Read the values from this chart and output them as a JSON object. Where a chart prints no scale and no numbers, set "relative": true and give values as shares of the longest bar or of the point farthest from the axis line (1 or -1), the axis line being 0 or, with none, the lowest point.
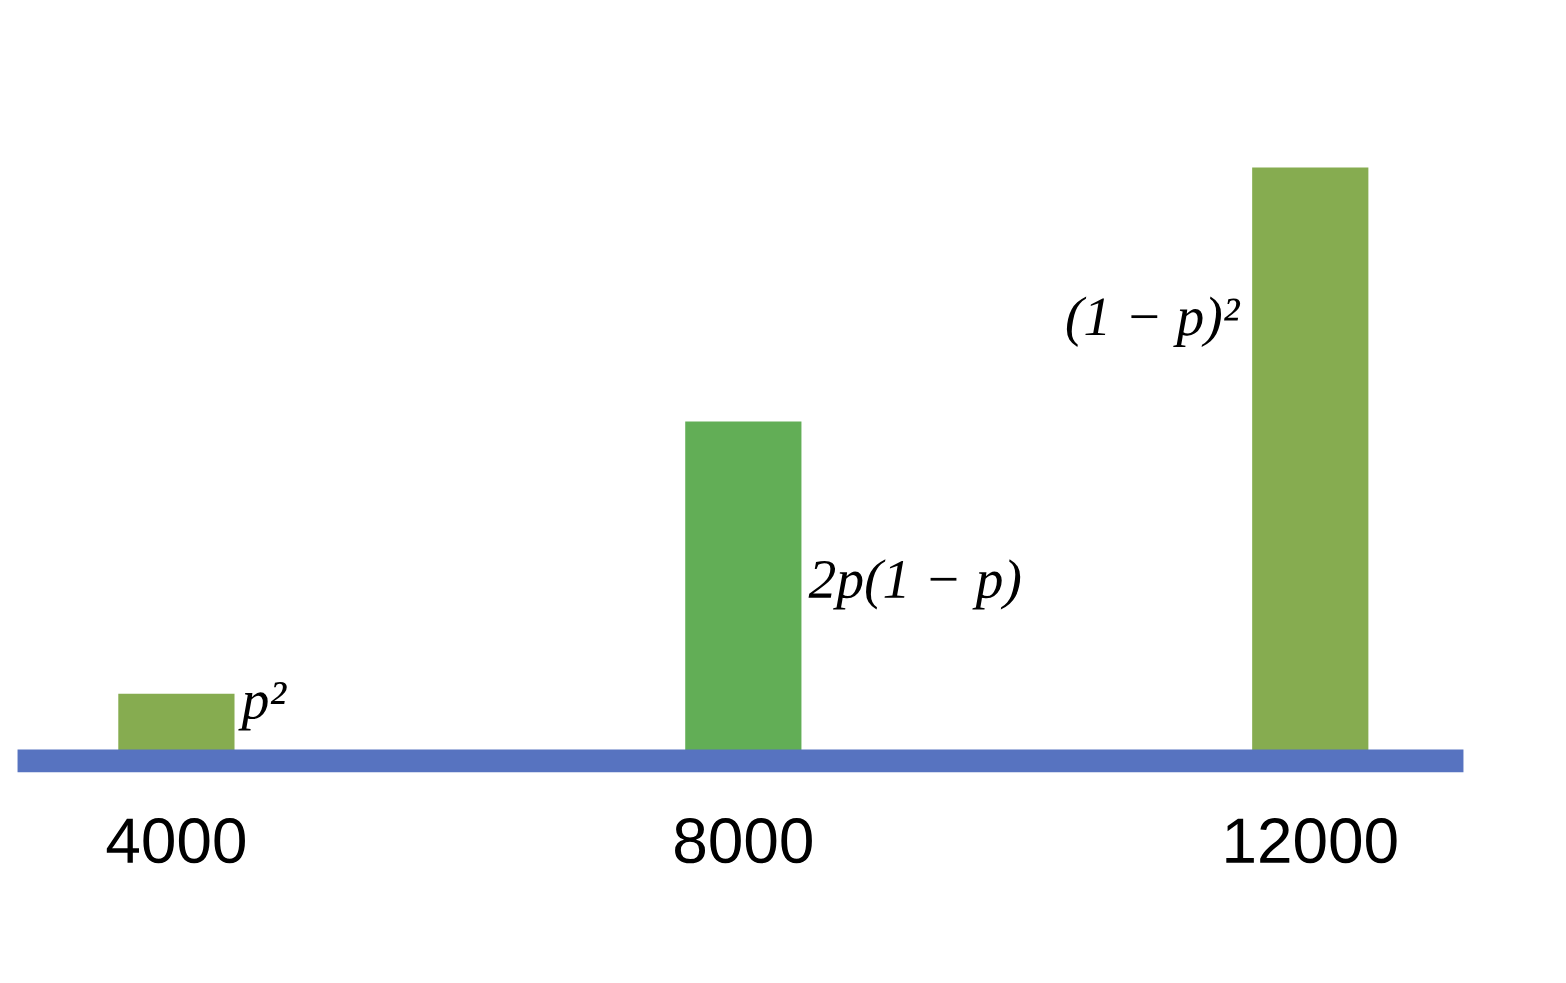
{
  "chart_data": {
    "type": "bar",
    "relative": true,
    "categories": [
      "4000",
      "8000",
      "12000"
    ],
    "values": [
      0.113,
      0.572,
      1
    ],
    "colors": [
      "#86ac50",
      "#62ae56",
      "#86ac50"
    ],
    "annotations": [
      "p²",
      "2p(1 − p)",
      "(1 − p)²"
    ]
  }
}
